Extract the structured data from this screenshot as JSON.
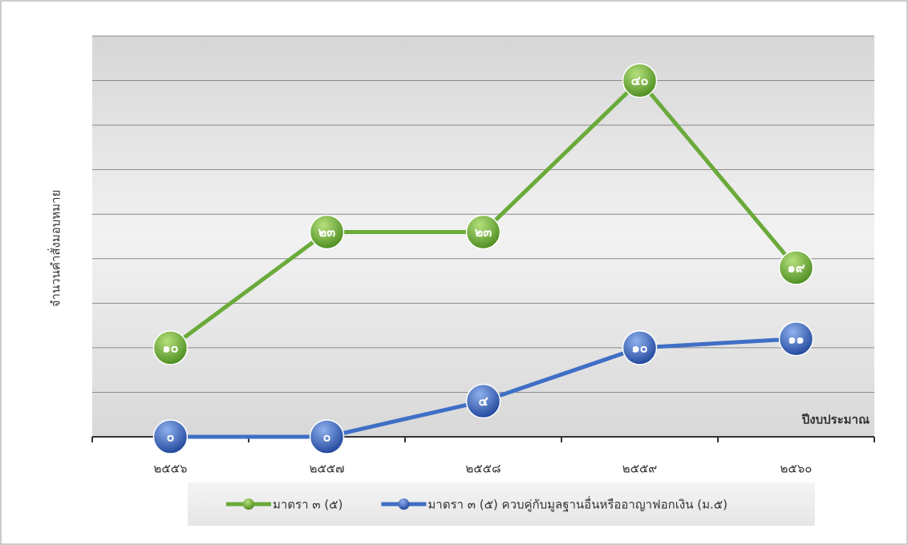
{
  "chart_data": {
    "type": "line",
    "y_label": "จำนวนคำสั่งมอบหมาย",
    "x_label": "ปีงบประมาณ",
    "categories": [
      "๒๕๕๖",
      "๒๕๕๗",
      "๒๕๕๘",
      "๒๕๕๙",
      "๒๕๖๐"
    ],
    "series": [
      {
        "name": "มาตรา ๓ (๕)",
        "color": "#6aaa3a",
        "values": [
          10,
          23,
          23,
          40,
          19
        ],
        "value_labels": [
          "๑๐",
          "๒๓",
          "๒๓",
          "๔๐",
          "๑๙"
        ]
      },
      {
        "name": "มาตรา ๓ (๕) ควบคู่กับมูลฐานอื่นหรืออาญาฟอกเงิน (ม.๕)",
        "color": "#3f6fc6",
        "values": [
          0,
          0,
          4,
          10,
          11
        ],
        "value_labels": [
          "๐",
          "๐",
          "๔",
          "๑๐",
          "๑๑"
        ]
      }
    ],
    "ylim": [
      0,
      45
    ],
    "yticks": [
      0,
      5,
      10,
      15,
      20,
      25,
      30,
      35,
      40,
      45
    ],
    "grid": true,
    "legend": "bottom"
  }
}
